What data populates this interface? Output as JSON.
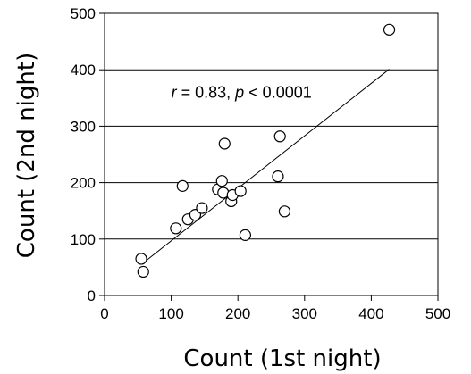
{
  "chart_data": {
    "type": "scatter",
    "xlabel": "Count (1st night)",
    "ylabel": "Count (2nd night)",
    "xlim": [
      0,
      500
    ],
    "ylim": [
      0,
      500
    ],
    "x_ticks": [
      "0",
      "100",
      "200",
      "300",
      "400",
      "500"
    ],
    "y_ticks": [
      "0",
      "100",
      "200",
      "300",
      "400",
      "500"
    ],
    "grid": "horizontal",
    "points": [
      {
        "x": 55,
        "y": 65
      },
      {
        "x": 58,
        "y": 42
      },
      {
        "x": 107,
        "y": 119
      },
      {
        "x": 117,
        "y": 194
      },
      {
        "x": 125,
        "y": 135
      },
      {
        "x": 136,
        "y": 143
      },
      {
        "x": 146,
        "y": 155
      },
      {
        "x": 170,
        "y": 188
      },
      {
        "x": 176,
        "y": 203
      },
      {
        "x": 178,
        "y": 182
      },
      {
        "x": 180,
        "y": 269
      },
      {
        "x": 190,
        "y": 167
      },
      {
        "x": 192,
        "y": 178
      },
      {
        "x": 204,
        "y": 185
      },
      {
        "x": 211,
        "y": 107
      },
      {
        "x": 260,
        "y": 211
      },
      {
        "x": 263,
        "y": 282
      },
      {
        "x": 270,
        "y": 149
      },
      {
        "x": 427,
        "y": 471
      }
    ],
    "trendline": {
      "x": [
        55,
        427
      ],
      "y": [
        55,
        401
      ]
    },
    "annotation": {
      "r_symbol": "r",
      "r_text": " = 0.83, ",
      "p_symbol": "p",
      "p_text": " < 0.0001",
      "x": 100,
      "y": 360
    },
    "colors": {
      "marker_stroke": "#000000",
      "marker_fill": "#ffffff",
      "line": "#000000",
      "grid": "#000000"
    }
  }
}
